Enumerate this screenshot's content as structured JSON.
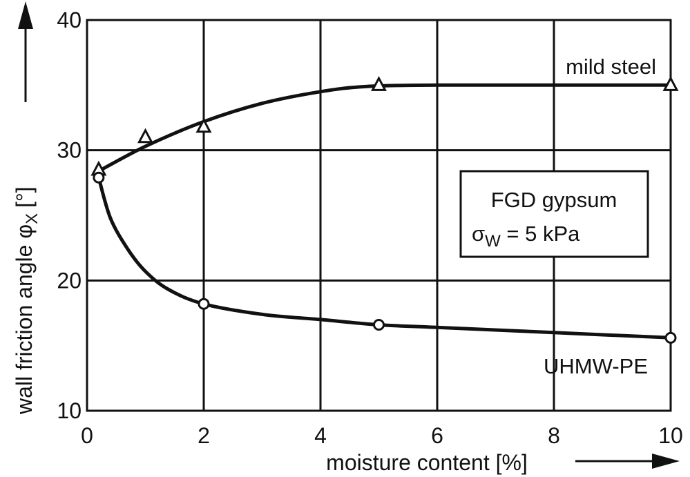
{
  "chart_data": {
    "type": "line",
    "title": "",
    "xlabel": "moisture content [%]",
    "ylabel_main": "wall friction angle φ",
    "ylabel_sub": "X",
    "ylabel_unit": "[°]",
    "xlim": [
      0,
      10
    ],
    "ylim": [
      10,
      40
    ],
    "xticks": [
      0,
      2,
      4,
      6,
      8,
      10
    ],
    "yticks": [
      10,
      20,
      30,
      40
    ],
    "grid": true,
    "series": [
      {
        "name": "mild steel",
        "marker": "triangle",
        "points": [
          [
            0.2,
            28.5
          ],
          [
            1,
            31
          ],
          [
            2,
            31.8
          ],
          [
            5,
            35
          ],
          [
            10,
            35
          ]
        ],
        "curve": [
          [
            0.2,
            28.4
          ],
          [
            1,
            30.3
          ],
          [
            2,
            32.2
          ],
          [
            3,
            33.6
          ],
          [
            4,
            34.5
          ],
          [
            4.8,
            34.9
          ],
          [
            6,
            35.0
          ],
          [
            8,
            35.0
          ],
          [
            10,
            35.0
          ]
        ]
      },
      {
        "name": "UHMW-PE",
        "marker": "circle",
        "points": [
          [
            0.2,
            27.9
          ],
          [
            2,
            18.2
          ],
          [
            5,
            16.6
          ],
          [
            10,
            15.6
          ]
        ],
        "curve": [
          [
            0.2,
            27.9
          ],
          [
            0.4,
            24.8
          ],
          [
            0.7,
            22.4
          ],
          [
            1.0,
            20.7
          ],
          [
            1.4,
            19.3
          ],
          [
            2,
            18.2
          ],
          [
            3,
            17.4
          ],
          [
            4,
            17.0
          ],
          [
            5,
            16.6
          ],
          [
            6,
            16.4
          ],
          [
            8,
            16.0
          ],
          [
            10,
            15.6
          ]
        ]
      }
    ],
    "series_labels": {
      "mild_steel": "mild steel",
      "uhmw_pe": "UHMW-PE"
    },
    "annotation": {
      "line1": "FGD gypsum",
      "line2_symbol": "σ",
      "line2_sub": "W",
      "line2_rest": " = 5 kPa"
    }
  }
}
